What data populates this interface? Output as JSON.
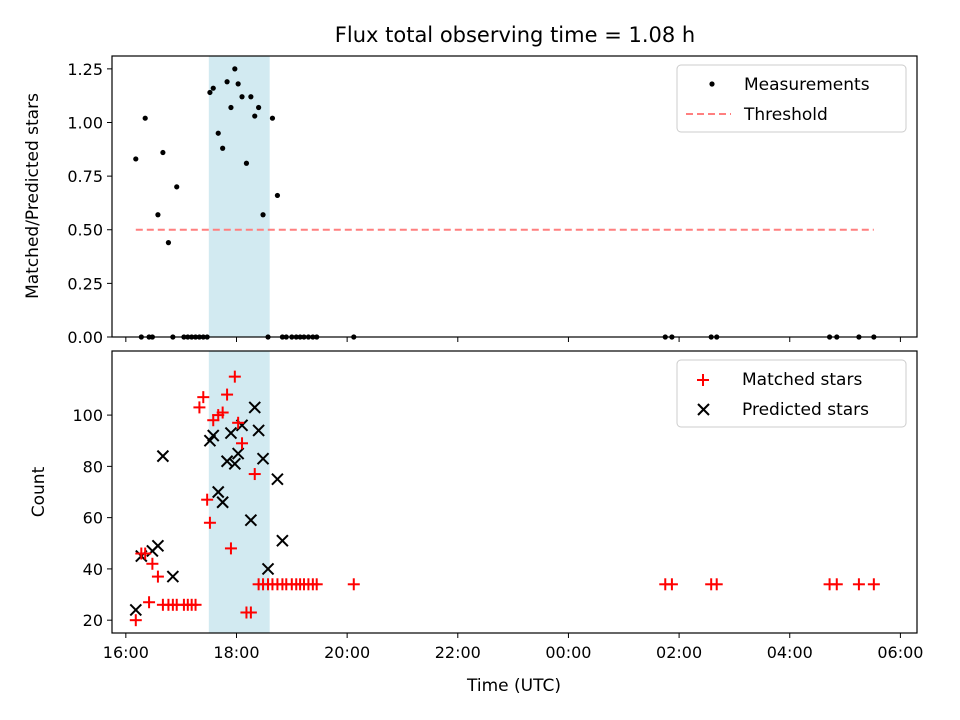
{
  "title": "Flux total observing time = 1.08 h",
  "colors": {
    "highlight": "#add8e6",
    "threshold": "#ff7f7f",
    "matched": "#ff0000",
    "predicted": "#000000",
    "measurement": "#000000"
  },
  "chart_data": [
    {
      "type": "scatter",
      "ylabel": "Matched/Predicted stars",
      "xlim": [
        15.75,
        30.3
      ],
      "ylim": [
        0,
        1.31
      ],
      "x_unit": "hours since 00:00 on the first day (values above 24 are past midnight)",
      "yticks": [
        0.0,
        0.25,
        0.5,
        0.75,
        1.0,
        1.25
      ],
      "ytick_labels": [
        "0.00",
        "0.25",
        "0.50",
        "0.75",
        "1.00",
        "1.25"
      ],
      "shaded_interval": [
        17.5,
        18.6
      ],
      "legend": {
        "placement": "top-right",
        "entries": [
          "Measurements",
          "Threshold"
        ]
      },
      "series": [
        {
          "name": "Measurements",
          "marker": "dot",
          "x": [
            16.18,
            16.28,
            16.35,
            16.42,
            16.48,
            16.58,
            16.67,
            16.77,
            16.85,
            16.92,
            17.05,
            17.12,
            17.19,
            17.26,
            17.33,
            17.4,
            17.47,
            17.52,
            17.58,
            17.67,
            17.75,
            17.83,
            17.9,
            17.97,
            18.03,
            18.1,
            18.18,
            18.26,
            18.33,
            18.4,
            18.48,
            18.57,
            18.65,
            18.74,
            18.83,
            18.9,
            19.0,
            19.08,
            19.15,
            19.22,
            19.3,
            19.38,
            19.45,
            20.12,
            25.75,
            25.87,
            26.58,
            26.68,
            28.72,
            28.85,
            29.25,
            29.52
          ],
          "y": [
            0.83,
            0.0,
            1.02,
            0.0,
            0.0,
            0.57,
            0.86,
            0.44,
            0.0,
            0.7,
            0.0,
            0.0,
            0.0,
            0.0,
            0.0,
            0.0,
            0.0,
            1.14,
            1.16,
            0.95,
            0.88,
            1.19,
            1.07,
            1.25,
            1.18,
            1.12,
            0.81,
            1.12,
            1.03,
            1.07,
            0.57,
            0.0,
            1.02,
            0.66,
            0.0,
            0.0,
            0.0,
            0.0,
            0.0,
            0.0,
            0.0,
            0.0,
            0.0,
            0.0,
            0.0,
            0.0,
            0.0,
            0.0,
            0.0,
            0.0,
            0.0,
            0.0
          ]
        },
        {
          "name": "Threshold",
          "style": "dashed",
          "x": [
            16.18,
            29.52
          ],
          "y": [
            0.5,
            0.5
          ]
        }
      ]
    },
    {
      "type": "scatter",
      "ylabel": "Count",
      "xlabel": "Time (UTC)",
      "xlim": [
        15.75,
        30.3
      ],
      "ylim": [
        15,
        125
      ],
      "x_unit": "hours since 00:00 on the first day (values above 24 are past midnight)",
      "xticks": [
        16,
        18,
        20,
        22,
        24,
        26,
        28,
        30
      ],
      "xtick_labels": [
        "16:00",
        "18:00",
        "20:00",
        "22:00",
        "00:00",
        "02:00",
        "04:00",
        "06:00"
      ],
      "yticks": [
        20,
        40,
        60,
        80,
        100
      ],
      "ytick_labels": [
        "20",
        "40",
        "60",
        "80",
        "100"
      ],
      "shaded_interval": [
        17.5,
        18.6
      ],
      "legend": {
        "placement": "top-right",
        "entries": [
          "Matched stars",
          "Predicted stars"
        ]
      },
      "series": [
        {
          "name": "Matched stars",
          "marker": "plus",
          "x": [
            16.18,
            16.28,
            16.35,
            16.42,
            16.48,
            16.58,
            16.67,
            16.77,
            16.85,
            16.92,
            17.05,
            17.12,
            17.19,
            17.26,
            17.33,
            17.4,
            17.47,
            17.52,
            17.58,
            17.67,
            17.75,
            17.83,
            17.9,
            17.97,
            18.03,
            18.1,
            18.18,
            18.26,
            18.33,
            18.4,
            18.48,
            18.57,
            18.65,
            18.74,
            18.83,
            18.9,
            19.0,
            19.08,
            19.15,
            19.22,
            19.3,
            19.38,
            19.45,
            20.12,
            25.75,
            25.87,
            26.58,
            26.68,
            28.72,
            28.85,
            29.25,
            29.52
          ],
          "y": [
            20,
            46,
            46,
            27,
            42,
            37,
            26,
            26,
            26,
            26,
            26,
            26,
            26,
            26,
            103,
            107,
            67,
            58,
            98,
            100,
            101,
            108,
            48,
            115,
            97,
            89,
            23,
            23,
            77,
            34,
            34,
            34,
            34,
            34,
            34,
            34,
            34,
            34,
            34,
            34,
            34,
            34,
            34,
            34,
            34,
            34,
            34,
            34,
            34,
            34,
            34,
            34
          ]
        },
        {
          "name": "Predicted stars",
          "marker": "x",
          "x": [
            16.18,
            16.28,
            16.48,
            16.58,
            16.67,
            16.85,
            17.52,
            17.58,
            17.67,
            17.75,
            17.83,
            17.9,
            17.97,
            18.03,
            18.1,
            18.26,
            18.33,
            18.4,
            18.48,
            18.57,
            18.74,
            18.83
          ],
          "y": [
            24,
            45,
            47,
            49,
            84,
            37,
            90,
            92,
            70,
            66,
            82,
            93,
            81,
            85,
            96,
            59,
            103,
            94,
            83,
            40,
            75,
            51
          ]
        }
      ]
    }
  ]
}
